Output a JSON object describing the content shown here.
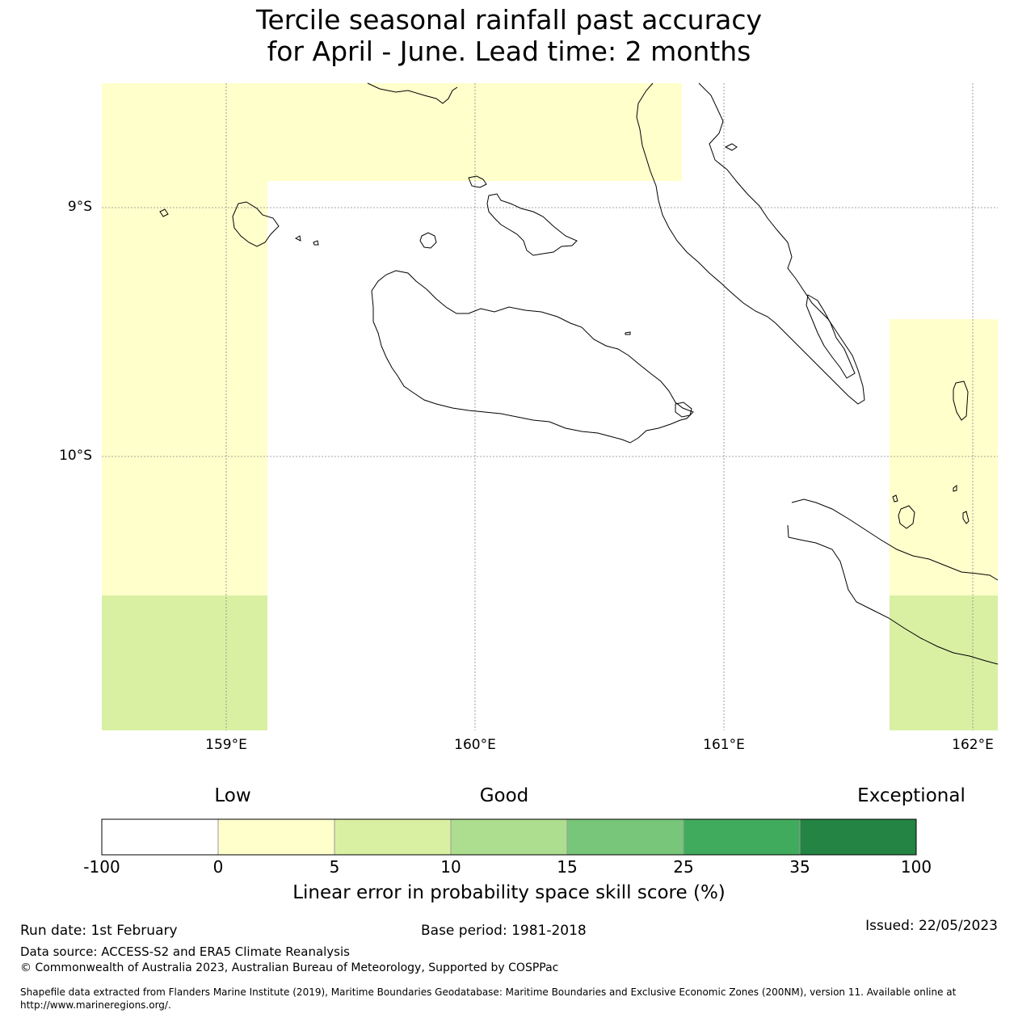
{
  "title": {
    "line1": "Tercile seasonal rainfall past accuracy",
    "line2": "for April - June. Lead time: 2 months"
  },
  "map": {
    "lat_labels": [
      "9°S",
      "10°S"
    ],
    "lon_labels": [
      "159°E",
      "160°E",
      "161°E",
      "162°E"
    ],
    "colors": {
      "score_0_5": "#ffffcc",
      "score_5_10": "#d9f0a3",
      "coast": "#000000",
      "grid": "#888888"
    }
  },
  "colorbar": {
    "category_labels": [
      "Low",
      "Good",
      "Exceptional"
    ],
    "ticks": [
      "-100",
      "0",
      "5",
      "10",
      "15",
      "25",
      "35",
      "100"
    ],
    "colors": [
      "#ffffff",
      "#ffffcc",
      "#d9f0a3",
      "#addd8e",
      "#78c679",
      "#41ab5d",
      "#238443"
    ],
    "title": "Linear error in probability space skill score (%)"
  },
  "footer": {
    "run_date": "Run date: 1st February",
    "base_period": "Base period: 1981-2018",
    "issued": "Issued: 22/05/2023",
    "data_source": "Data source: ACCESS-S2 and ERA5 Climate Reanalysis",
    "copyright": "© Commonwealth of Australia 2023, Australian Bureau of Meteorology, Supported by COSPPac",
    "shapefile": "Shapefile data extracted from Flanders Marine Institute (2019), Maritime Boundaries Geodatabase: Maritime Boundaries and Exclusive Economic Zones (200NM), version 11. Available online at http://www.marineregions.org/."
  }
}
